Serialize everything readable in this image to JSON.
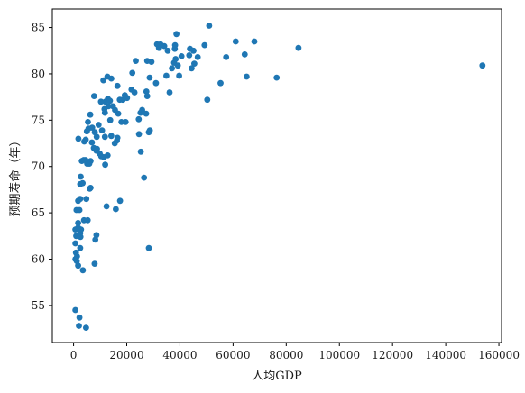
{
  "chart_data": {
    "type": "scatter",
    "title": "",
    "xlabel": "人均GDP",
    "ylabel": "预期寿命（年）",
    "xlim": [
      -8000,
      161000
    ],
    "ylim": [
      51,
      87
    ],
    "grid": false,
    "legend": "none",
    "point_color": "#1f77b4",
    "x_ticks": [
      0,
      20000,
      40000,
      60000,
      80000,
      100000,
      120000,
      140000,
      160000
    ],
    "x_tick_labels": [
      "0",
      "20000",
      "40000",
      "60000",
      "80000",
      "100000",
      "120000",
      "140000",
      "160000"
    ],
    "y_ticks": [
      55,
      60,
      65,
      70,
      75,
      80,
      85
    ],
    "y_tick_labels": [
      "55",
      "60",
      "65",
      "70",
      "75",
      "80",
      "85"
    ],
    "points": [
      [
        700,
        54.5
      ],
      [
        2200,
        53.7
      ],
      [
        2000,
        52.8
      ],
      [
        4700,
        52.6
      ],
      [
        3500,
        58.8
      ],
      [
        1700,
        59.3
      ],
      [
        1200,
        59.8
      ],
      [
        700,
        60.0
      ],
      [
        1300,
        60.3
      ],
      [
        900,
        60.7
      ],
      [
        2500,
        61.2
      ],
      [
        700,
        61.7
      ],
      [
        1000,
        62.5
      ],
      [
        2600,
        62.4
      ],
      [
        2500,
        62.8
      ],
      [
        8600,
        62.6
      ],
      [
        8200,
        62.1
      ],
      [
        7900,
        59.5
      ],
      [
        700,
        63.2
      ],
      [
        1700,
        63.4
      ],
      [
        2800,
        63.2
      ],
      [
        1700,
        63.9
      ],
      [
        3900,
        64.2
      ],
      [
        5300,
        64.2
      ],
      [
        1100,
        65.3
      ],
      [
        2200,
        65.3
      ],
      [
        4800,
        66.5
      ],
      [
        1700,
        66.3
      ],
      [
        2500,
        66.5
      ],
      [
        6100,
        67.6
      ],
      [
        6400,
        67.7
      ],
      [
        12400,
        65.7
      ],
      [
        15900,
        65.4
      ],
      [
        17500,
        66.3
      ],
      [
        28300,
        61.2
      ],
      [
        2700,
        68.9
      ],
      [
        2500,
        68.1
      ],
      [
        3400,
        68.2
      ],
      [
        3100,
        70.6
      ],
      [
        4500,
        70.7
      ],
      [
        5100,
        70.3
      ],
      [
        5900,
        70.3
      ],
      [
        6400,
        70.6
      ],
      [
        3800,
        70.7
      ],
      [
        1800,
        73.0
      ],
      [
        4000,
        72.7
      ],
      [
        4600,
        72.9
      ],
      [
        6900,
        72.6
      ],
      [
        7600,
        72.0
      ],
      [
        8600,
        71.7
      ],
      [
        8800,
        71.9
      ],
      [
        9800,
        71.4
      ],
      [
        10400,
        71.1
      ],
      [
        11400,
        71.0
      ],
      [
        11900,
        70.2
      ],
      [
        12800,
        71.2
      ],
      [
        15500,
        72.5
      ],
      [
        16300,
        72.8
      ],
      [
        14200,
        73.3
      ],
      [
        8700,
        73.2
      ],
      [
        5000,
        73.8
      ],
      [
        5600,
        74.1
      ],
      [
        7000,
        74.2
      ],
      [
        8000,
        73.7
      ],
      [
        9400,
        74.5
      ],
      [
        10700,
        73.9
      ],
      [
        11800,
        73.2
      ],
      [
        16500,
        73.1
      ],
      [
        18000,
        74.8
      ],
      [
        19600,
        74.8
      ],
      [
        16800,
        75.7
      ],
      [
        13800,
        75.0
      ],
      [
        11800,
        75.8
      ],
      [
        11600,
        76.2
      ],
      [
        13100,
        76.5
      ],
      [
        12900,
        77.3
      ],
      [
        12000,
        77.0
      ],
      [
        10300,
        77.0
      ],
      [
        7700,
        77.6
      ],
      [
        6300,
        75.6
      ],
      [
        5400,
        74.8
      ],
      [
        13700,
        77.1
      ],
      [
        14800,
        76.5
      ],
      [
        15600,
        76.1
      ],
      [
        17400,
        77.2
      ],
      [
        18500,
        77.2
      ],
      [
        19300,
        77.7
      ],
      [
        20100,
        77.4
      ],
      [
        16500,
        78.7
      ],
      [
        12700,
        79.7
      ],
      [
        11200,
        79.3
      ],
      [
        14200,
        79.5
      ],
      [
        21800,
        78.3
      ],
      [
        22100,
        80.1
      ],
      [
        23400,
        81.4
      ],
      [
        22900,
        78.0
      ],
      [
        24500,
        75.1
      ],
      [
        25200,
        75.8
      ],
      [
        25800,
        76.1
      ],
      [
        27300,
        75.7
      ],
      [
        27700,
        77.6
      ],
      [
        27400,
        78.1
      ],
      [
        24600,
        73.5
      ],
      [
        25300,
        71.6
      ],
      [
        26500,
        68.8
      ],
      [
        28300,
        73.7
      ],
      [
        28700,
        73.9
      ],
      [
        28600,
        79.6
      ],
      [
        29300,
        81.3
      ],
      [
        31000,
        79.0
      ],
      [
        27700,
        81.4
      ],
      [
        31400,
        83.2
      ],
      [
        32100,
        82.8
      ],
      [
        32700,
        83.2
      ],
      [
        34100,
        83.0
      ],
      [
        35400,
        82.5
      ],
      [
        34900,
        79.8
      ],
      [
        36100,
        78.0
      ],
      [
        37000,
        80.6
      ],
      [
        37800,
        81.2
      ],
      [
        38400,
        81.6
      ],
      [
        39200,
        80.9
      ],
      [
        38100,
        82.7
      ],
      [
        38200,
        83.1
      ],
      [
        38700,
        84.3
      ],
      [
        40600,
        81.9
      ],
      [
        39700,
        79.8
      ],
      [
        43500,
        82.0
      ],
      [
        43800,
        82.7
      ],
      [
        44400,
        80.6
      ],
      [
        45400,
        81.1
      ],
      [
        45100,
        82.5
      ],
      [
        46700,
        81.8
      ],
      [
        49300,
        83.1
      ],
      [
        50300,
        77.2
      ],
      [
        51000,
        85.2
      ],
      [
        55300,
        79.0
      ],
      [
        57400,
        81.8
      ],
      [
        61000,
        83.5
      ],
      [
        64400,
        82.1
      ],
      [
        65100,
        79.7
      ],
      [
        68000,
        83.5
      ],
      [
        76400,
        79.6
      ],
      [
        84600,
        82.8
      ],
      [
        153800,
        80.9
      ]
    ]
  }
}
